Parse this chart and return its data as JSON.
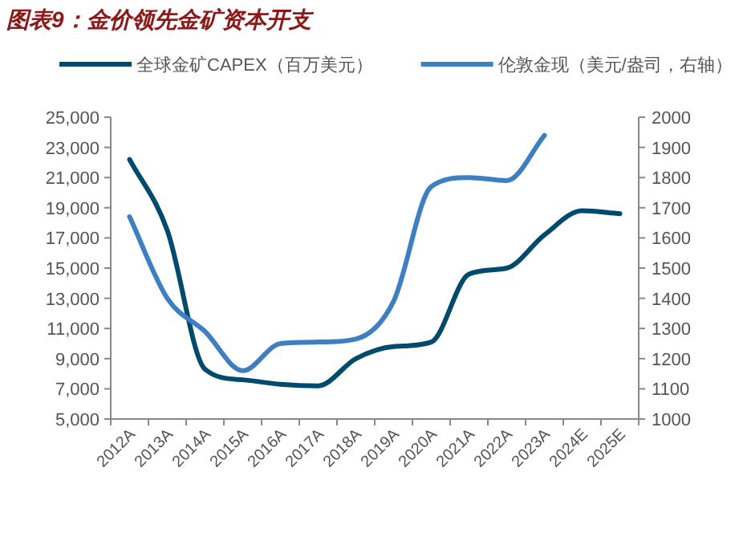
{
  "chart_data": {
    "type": "line",
    "title": "图表9：金价领先金矿资本开支",
    "categories": [
      "2012A",
      "2013A",
      "2014A",
      "2015A",
      "2016A",
      "2017A",
      "2018A",
      "2019A",
      "2020A",
      "2021A",
      "2022A",
      "2023A",
      "2024E",
      "2025E"
    ],
    "series": [
      {
        "name": "全球金矿CAPEX（百万美元）",
        "color": "#004a6e",
        "values": [
          22200,
          17500,
          8300,
          7600,
          7300,
          7200,
          9000,
          9800,
          10100,
          14600,
          15000,
          17200,
          18800,
          18600
        ]
      },
      {
        "name": "伦敦金现（美元/盎司，右轴）",
        "color": "#3e7fc1",
        "axis": "y2",
        "values": [
          1670,
          1400,
          1290,
          1160,
          1250,
          1255,
          1265,
          1390,
          1770,
          1800,
          1790,
          1940,
          null,
          null
        ]
      }
    ],
    "ylim": [
      5000,
      25000
    ],
    "yticks": [
      {
        "value": 5000,
        "label": "5,000"
      },
      {
        "value": 7000,
        "label": "7,000"
      },
      {
        "value": 9000,
        "label": "9,000"
      },
      {
        "value": 11000,
        "label": "11,000"
      },
      {
        "value": 13000,
        "label": "13,000"
      },
      {
        "value": 15000,
        "label": "15,000"
      },
      {
        "value": 17000,
        "label": "17,000"
      },
      {
        "value": 19000,
        "label": "19,000"
      },
      {
        "value": 21000,
        "label": "21,000"
      },
      {
        "value": 23000,
        "label": "23,000"
      },
      {
        "value": 25000,
        "label": "25,000"
      }
    ],
    "y2lim": [
      1000,
      2000
    ],
    "y2ticks": [
      1000,
      1100,
      1200,
      1300,
      1400,
      1500,
      1600,
      1700,
      1800,
      1900,
      2000
    ],
    "legend": "top",
    "grid": false,
    "marker": "none",
    "line_style": "solid"
  }
}
